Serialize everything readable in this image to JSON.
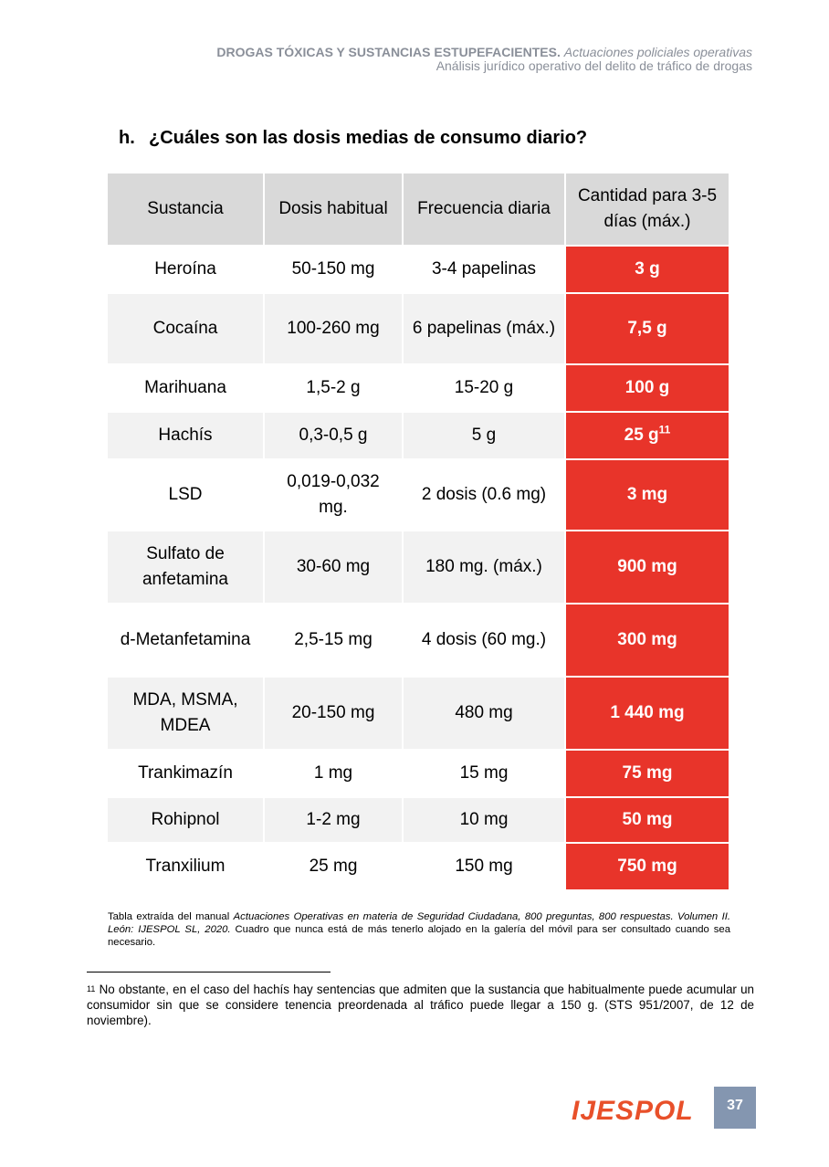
{
  "header": {
    "title_bold": "DROGAS TÓXICAS Y SUSTANCIAS ESTUPEFACIENTES.",
    "title_italic": "Actuaciones policiales operativas",
    "subtitle": "Análisis jurídico operativo del delito de tráfico de drogas"
  },
  "section_heading": {
    "label": "h.",
    "text": "¿Cuáles son las dosis medias de consumo diario?"
  },
  "table": {
    "columns": [
      "Sustancia",
      "Dosis habitual",
      "Frecuencia diaria",
      "Cantidad para 3-5 días (máx.)"
    ],
    "rows": [
      [
        "Heroína",
        "50-150 mg",
        "3-4 papelinas",
        "3 g"
      ],
      [
        "Cocaína",
        "100-260 mg",
        "6 papelinas (máx.)",
        "7,5 g"
      ],
      [
        "Marihuana",
        "1,5-2 g",
        "15-20 g",
        "100 g"
      ],
      [
        "Hachís",
        "0,3-0,5 g",
        "5 g",
        "25 g"
      ],
      [
        "LSD",
        "0,019-0,032 mg.",
        "2 dosis (0.6 mg)",
        "3 mg"
      ],
      [
        "Sulfato de anfetamina",
        "30-60 mg",
        "180 mg. (máx.)",
        "900 mg"
      ],
      [
        "d-Metanfetamina",
        "2,5-15 mg",
        "4 dosis (60 mg.)",
        "300 mg"
      ],
      [
        "MDA, MSMA, MDEA",
        "20-150 mg",
        "480 mg",
        "1 440 mg"
      ],
      [
        "Trankimazín",
        "1 mg",
        "15 mg",
        "75 mg"
      ],
      [
        "Rohipnol",
        "1-2 mg",
        "10 mg",
        "50 mg"
      ],
      [
        "Tranxilium",
        "25 mg",
        "150 mg",
        "750 mg"
      ]
    ],
    "footnote_mark": "11"
  },
  "caption": {
    "text_start": "Tabla extraída del manual ",
    "text_italic": "Actuaciones Operativas en materia de Seguridad Ciudadana, 800 preguntas, 800 respuestas. Volumen II. León: IJESPOL SL, 2020.",
    "text_end": " Cuadro que nunca está de más tenerlo alojado en la galería del móvil para ser consultado cuando sea necesario."
  },
  "footnote": {
    "mark": "11",
    "text": "No obstante, en el caso del hachís hay sentencias que admiten que la sustancia que habitualmente puede acumular un consumidor sin que se considere tenencia preordenada al tráfico puede llegar a 150 g. (STS 951/2007, de 12 de noviembre)."
  },
  "footer": {
    "logo": "IJESPOL",
    "page_number": "37"
  }
}
